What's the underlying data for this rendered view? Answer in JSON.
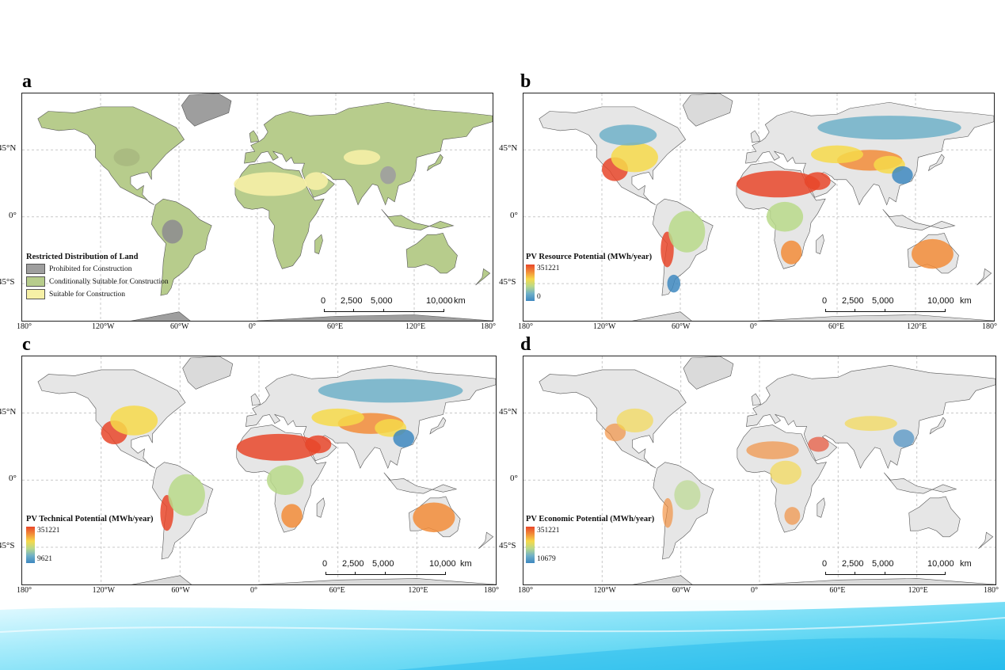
{
  "panels": [
    {
      "letter": "a",
      "legend_type": "categorical",
      "legend_title": "Restricted Distribution of Land",
      "legend_items": [
        {
          "label": "Prohibited for Construction",
          "color": "#9e9e9e"
        },
        {
          "label": "Conditionally Suitable for Construction",
          "color": "#b7cc8c"
        },
        {
          "label": "Suitable for Construction",
          "color": "#f6f0a6"
        }
      ],
      "land_color": "#b7cc8c"
    },
    {
      "letter": "b",
      "legend_type": "gradient",
      "legend_title": "PV Resource Potential (MWh/year)",
      "grad_max": "351221",
      "grad_min": "0",
      "land_color": "#e6e6e6"
    },
    {
      "letter": "c",
      "legend_type": "gradient",
      "legend_title": "PV Technical Potential (MWh/year)",
      "grad_max": "351221",
      "grad_min": "9621",
      "land_color": "#e6e6e6"
    },
    {
      "letter": "d",
      "legend_type": "gradient",
      "legend_title": "PV Economic Potential (MWh/year)",
      "grad_max": "351221",
      "grad_min": "10679",
      "land_color": "#e6e6e6"
    }
  ],
  "lat_labels": [
    "45°N",
    "0°",
    "45°S"
  ],
  "lon_labels": [
    "180°",
    "120°W",
    "60°W",
    "0°",
    "60°E",
    "120°E",
    "180°"
  ],
  "scale": {
    "ticks": [
      "0",
      "2,500",
      "5,000",
      "10,000"
    ],
    "unit": "km"
  },
  "colors": {
    "hot": "#e8472a",
    "warm": "#f28c38",
    "mid": "#f6d94a",
    "green": "#b9d98a",
    "cool": "#6fb0c8",
    "cold": "#3e88c0",
    "ocean": "#ffffff",
    "grid": "#c8c8c8"
  }
}
